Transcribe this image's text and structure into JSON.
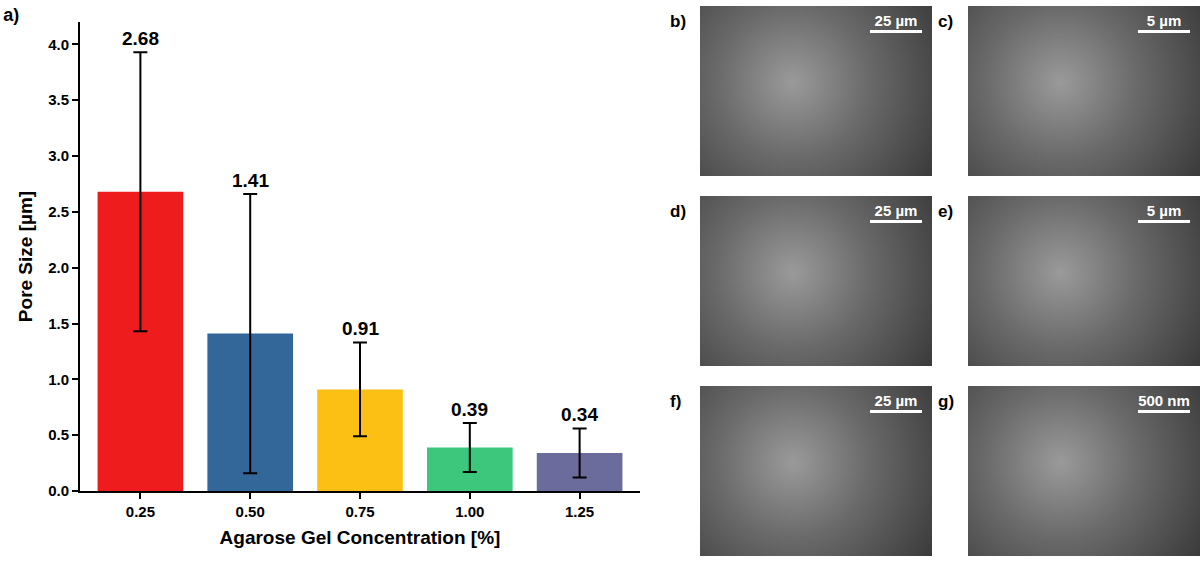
{
  "chart_data": {
    "type": "bar",
    "title": "a)",
    "x_label": "Agarose Gel Concentration [%]",
    "y_label": "Pore Size [µm]",
    "categories": [
      "0.25",
      "0.50",
      "0.75",
      "1.00",
      "1.25"
    ],
    "values": [
      2.68,
      1.41,
      0.91,
      0.39,
      0.34
    ],
    "error": [
      1.25,
      1.25,
      0.42,
      0.22,
      0.22
    ],
    "colors": [
      "#ee1c1c",
      "#33679a",
      "#fcc015",
      "#3cc77c",
      "#6b6b9c"
    ],
    "ylim": [
      0,
      4.2
    ],
    "yticks": [
      {
        "value": 0,
        "label": "0.0"
      },
      0.5,
      {
        "value": 1,
        "label": "1.0"
      },
      1.5,
      {
        "value": 2,
        "label": "2.0"
      },
      2.5,
      {
        "value": 3,
        "label": "3.0"
      },
      3.5,
      {
        "value": 4,
        "label": "4.0"
      }
    ],
    "data_labels": true,
    "grid": false
  },
  "panels": [
    {
      "label": "b)",
      "scale_bar": "25 µm"
    },
    {
      "label": "c)",
      "scale_bar": "5 µm"
    },
    {
      "label": "d)",
      "scale_bar": "25 µm"
    },
    {
      "label": "e)",
      "scale_bar": "5 µm"
    },
    {
      "label": "f)",
      "scale_bar": "25 µm"
    },
    {
      "label": "g)",
      "scale_bar": "500 nm"
    }
  ]
}
